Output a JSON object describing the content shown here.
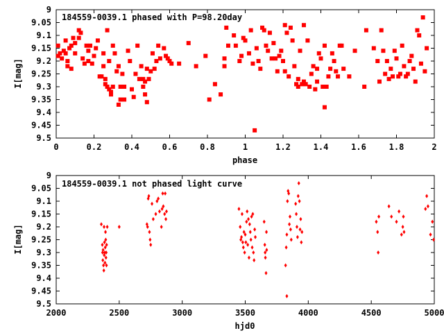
{
  "chart_data": [
    {
      "type": "scatter",
      "title": "184559-0039.1 phased with P=98.20day",
      "xlabel": "phase",
      "ylabel": "I[mag]",
      "xlim": [
        0,
        2
      ],
      "ylim": [
        9.5,
        9
      ],
      "y_inverted": true,
      "xticks": [
        0,
        0.2,
        0.4,
        0.6,
        0.8,
        1,
        1.2,
        1.4,
        1.6,
        1.8,
        2
      ],
      "xtick_labels": [
        "0",
        "0.2",
        "0.4",
        "0.6",
        "0.8",
        "1",
        "1.2",
        "1.4",
        "1.6",
        "1.8",
        "2"
      ],
      "yticks": [
        9,
        9.05,
        9.1,
        9.15,
        9.2,
        9.25,
        9.3,
        9.35,
        9.4,
        9.45,
        9.5
      ],
      "ytick_labels": [
        "9",
        "9.05",
        "9.1",
        "9.15",
        "9.2",
        "9.25",
        "9.3",
        "9.35",
        "9.4",
        "9.45",
        "9.5"
      ],
      "marker": "square",
      "color": "#ff0000",
      "points": [
        [
          0.01,
          9.14
        ],
        [
          0.01,
          9.18
        ],
        [
          0.02,
          9.17
        ],
        [
          0.03,
          9.19
        ],
        [
          0.04,
          9.16
        ],
        [
          0.05,
          9.12
        ],
        [
          0.05,
          9.17
        ],
        [
          0.06,
          9.2
        ],
        [
          0.06,
          9.22
        ],
        [
          0.07,
          9.15
        ],
        [
          0.08,
          9.23
        ],
        [
          0.08,
          9.14
        ],
        [
          0.09,
          9.11
        ],
        [
          0.1,
          9.13
        ],
        [
          0.1,
          9.17
        ],
        [
          0.12,
          9.08
        ],
        [
          0.12,
          9.11
        ],
        [
          0.13,
          9.09
        ],
        [
          0.14,
          9.19
        ],
        [
          0.15,
          9.21
        ],
        [
          0.16,
          9.14
        ],
        [
          0.17,
          9.16
        ],
        [
          0.17,
          9.2
        ],
        [
          0.18,
          9.14
        ],
        [
          0.19,
          9.21
        ],
        [
          0.2,
          9.18
        ],
        [
          0.21,
          9.15
        ],
        [
          0.22,
          9.12
        ],
        [
          0.23,
          9.26
        ],
        [
          0.24,
          9.26
        ],
        [
          0.25,
          9.17
        ],
        [
          0.25,
          9.22
        ],
        [
          0.26,
          9.27
        ],
        [
          0.26,
          9.29
        ],
        [
          0.27,
          9.08
        ],
        [
          0.27,
          9.3
        ],
        [
          0.28,
          9.31
        ],
        [
          0.28,
          9.2
        ],
        [
          0.29,
          9.32
        ],
        [
          0.29,
          9.33
        ],
        [
          0.3,
          9.3
        ],
        [
          0.3,
          9.14
        ],
        [
          0.31,
          9.17
        ],
        [
          0.32,
          9.24
        ],
        [
          0.33,
          9.22
        ],
        [
          0.33,
          9.37
        ],
        [
          0.34,
          9.35
        ],
        [
          0.34,
          9.3
        ],
        [
          0.35,
          9.25
        ],
        [
          0.35,
          9.3
        ],
        [
          0.36,
          9.35
        ],
        [
          0.36,
          9.3
        ],
        [
          0.38,
          9.16
        ],
        [
          0.39,
          9.2
        ],
        [
          0.4,
          9.31
        ],
        [
          0.41,
          9.34
        ],
        [
          0.42,
          9.25
        ],
        [
          0.43,
          9.14
        ],
        [
          0.44,
          9.27
        ],
        [
          0.45,
          9.22
        ],
        [
          0.46,
          9.27
        ],
        [
          0.46,
          9.3
        ],
        [
          0.47,
          9.28
        ],
        [
          0.47,
          9.33
        ],
        [
          0.48,
          9.36
        ],
        [
          0.48,
          9.23
        ],
        [
          0.49,
          9.27
        ],
        [
          0.5,
          9.24
        ],
        [
          0.51,
          9.17
        ],
        [
          0.52,
          9.23
        ],
        [
          0.53,
          9.2
        ],
        [
          0.54,
          9.14
        ],
        [
          0.55,
          9.19
        ],
        [
          0.57,
          9.15
        ],
        [
          0.58,
          9.18
        ],
        [
          0.59,
          9.19
        ],
        [
          0.6,
          9.2
        ],
        [
          0.61,
          9.21
        ],
        [
          0.65,
          9.21
        ],
        [
          0.7,
          9.13
        ],
        [
          0.74,
          9.22
        ],
        [
          0.79,
          9.18
        ],
        [
          0.81,
          9.35
        ],
        [
          0.84,
          9.29
        ],
        [
          0.87,
          9.33
        ],
        [
          0.89,
          9.19
        ],
        [
          0.89,
          9.22
        ],
        [
          0.9,
          9.07
        ],
        [
          0.91,
          9.14
        ],
        [
          0.94,
          9.1
        ],
        [
          0.95,
          9.14
        ],
        [
          0.97,
          9.2
        ],
        [
          0.98,
          9.18
        ],
        [
          0.99,
          9.11
        ],
        [
          1.0,
          9.12
        ],
        [
          1.02,
          9.17
        ],
        [
          1.03,
          9.08
        ],
        [
          1.04,
          9.21
        ],
        [
          1.05,
          9.47
        ],
        [
          1.06,
          9.15
        ],
        [
          1.07,
          9.2
        ],
        [
          1.08,
          9.23
        ],
        [
          1.09,
          9.07
        ],
        [
          1.1,
          9.08
        ],
        [
          1.11,
          9.14
        ],
        [
          1.12,
          9.16
        ],
        [
          1.13,
          9.09
        ],
        [
          1.14,
          9.19
        ],
        [
          1.15,
          9.13
        ],
        [
          1.16,
          9.19
        ],
        [
          1.17,
          9.24
        ],
        [
          1.18,
          9.18
        ],
        [
          1.19,
          9.16
        ],
        [
          1.2,
          9.2
        ],
        [
          1.21,
          9.24
        ],
        [
          1.21,
          9.06
        ],
        [
          1.22,
          9.09
        ],
        [
          1.23,
          9.26
        ],
        [
          1.24,
          9.07
        ],
        [
          1.25,
          9.12
        ],
        [
          1.26,
          9.22
        ],
        [
          1.27,
          9.29
        ],
        [
          1.28,
          9.3
        ],
        [
          1.28,
          9.27
        ],
        [
          1.29,
          9.16
        ],
        [
          1.3,
          9.29
        ],
        [
          1.31,
          9.06
        ],
        [
          1.31,
          9.28
        ],
        [
          1.32,
          9.29
        ],
        [
          1.33,
          9.12
        ],
        [
          1.34,
          9.3
        ],
        [
          1.35,
          9.25
        ],
        [
          1.36,
          9.22
        ],
        [
          1.37,
          9.31
        ],
        [
          1.38,
          9.23
        ],
        [
          1.38,
          9.28
        ],
        [
          1.39,
          9.17
        ],
        [
          1.4,
          9.19
        ],
        [
          1.41,
          9.3
        ],
        [
          1.42,
          9.14
        ],
        [
          1.42,
          9.38
        ],
        [
          1.43,
          9.3
        ],
        [
          1.44,
          9.26
        ],
        [
          1.45,
          9.23
        ],
        [
          1.46,
          9.17
        ],
        [
          1.47,
          9.2
        ],
        [
          1.48,
          9.24
        ],
        [
          1.49,
          9.26
        ],
        [
          1.5,
          9.14
        ],
        [
          1.51,
          9.14
        ],
        [
          1.52,
          9.23
        ],
        [
          1.55,
          9.26
        ],
        [
          1.58,
          9.16
        ],
        [
          1.63,
          9.3
        ],
        [
          1.64,
          9.08
        ],
        [
          1.68,
          9.15
        ],
        [
          1.7,
          9.2
        ],
        [
          1.71,
          9.28
        ],
        [
          1.72,
          9.08
        ],
        [
          1.73,
          9.16
        ],
        [
          1.74,
          9.25
        ],
        [
          1.75,
          9.2
        ],
        [
          1.76,
          9.27
        ],
        [
          1.77,
          9.23
        ],
        [
          1.78,
          9.26
        ],
        [
          1.79,
          9.16
        ],
        [
          1.8,
          9.19
        ],
        [
          1.81,
          9.26
        ],
        [
          1.82,
          9.25
        ],
        [
          1.83,
          9.14
        ],
        [
          1.84,
          9.22
        ],
        [
          1.85,
          9.26
        ],
        [
          1.86,
          9.25
        ],
        [
          1.87,
          9.2
        ],
        [
          1.88,
          9.18
        ],
        [
          1.89,
          9.23
        ],
        [
          1.9,
          9.28
        ],
        [
          1.91,
          9.08
        ],
        [
          1.92,
          9.1
        ],
        [
          1.93,
          9.21
        ],
        [
          1.94,
          9.03
        ],
        [
          1.95,
          9.24
        ],
        [
          1.96,
          9.15
        ]
      ]
    },
    {
      "type": "scatter",
      "title": "184559-0039.1 not phased light curve",
      "xlabel": "hjd0",
      "ylabel": "I[mag]",
      "xlim": [
        2000,
        5000
      ],
      "ylim": [
        9.5,
        9
      ],
      "y_inverted": true,
      "xticks": [
        2000,
        2500,
        3000,
        3500,
        4000,
        4500,
        5000
      ],
      "xtick_labels": [
        "2000",
        "2500",
        "3000",
        "3500",
        "4000",
        "4500",
        "5000"
      ],
      "yticks": [
        9,
        9.05,
        9.1,
        9.15,
        9.2,
        9.25,
        9.3,
        9.35,
        9.4,
        9.45,
        9.5
      ],
      "ytick_labels": [
        "9",
        "9.05",
        "9.1",
        "9.15",
        "9.2",
        "9.25",
        "9.3",
        "9.35",
        "9.4",
        "9.45",
        "9.5"
      ],
      "marker": "diamond",
      "color": "#ff0000",
      "points": [
        [
          2358,
          9.19
        ],
        [
          2366,
          9.27
        ],
        [
          2368,
          9.3
        ],
        [
          2370,
          9.33
        ],
        [
          2372,
          9.29
        ],
        [
          2375,
          9.35
        ],
        [
          2378,
          9.37
        ],
        [
          2380,
          9.2
        ],
        [
          2381,
          9.31
        ],
        [
          2383,
          9.26
        ],
        [
          2385,
          9.3
        ],
        [
          2387,
          9.34
        ],
        [
          2389,
          9.28
        ],
        [
          2391,
          9.22
        ],
        [
          2393,
          9.25
        ],
        [
          2395,
          9.32
        ],
        [
          2397,
          9.3
        ],
        [
          2399,
          9.35
        ],
        [
          2400,
          9.27
        ],
        [
          2405,
          9.2
        ],
        [
          2500,
          9.2
        ],
        [
          2720,
          9.19
        ],
        [
          2725,
          9.2
        ],
        [
          2730,
          9.09
        ],
        [
          2735,
          9.08
        ],
        [
          2740,
          9.22
        ],
        [
          2745,
          9.25
        ],
        [
          2750,
          9.27
        ],
        [
          2760,
          9.11
        ],
        [
          2770,
          9.17
        ],
        [
          2790,
          9.15
        ],
        [
          2800,
          9.1
        ],
        [
          2810,
          9.09
        ],
        [
          2820,
          9.14
        ],
        [
          2835,
          9.2
        ],
        [
          2840,
          9.13
        ],
        [
          2845,
          9.07
        ],
        [
          2850,
          9.12
        ],
        [
          2860,
          9.15
        ],
        [
          2865,
          9.07
        ],
        [
          2870,
          9.17
        ],
        [
          2875,
          9.14
        ],
        [
          3450,
          9.13
        ],
        [
          3460,
          9.2
        ],
        [
          3465,
          9.25
        ],
        [
          3470,
          9.24
        ],
        [
          3475,
          9.15
        ],
        [
          3480,
          9.26
        ],
        [
          3485,
          9.28
        ],
        [
          3490,
          9.22
        ],
        [
          3495,
          9.3
        ],
        [
          3500,
          9.23
        ],
        [
          3505,
          9.26
        ],
        [
          3510,
          9.18
        ],
        [
          3515,
          9.14
        ],
        [
          3520,
          9.27
        ],
        [
          3525,
          9.17
        ],
        [
          3530,
          9.32
        ],
        [
          3535,
          9.19
        ],
        [
          3540,
          9.22
        ],
        [
          3545,
          9.25
        ],
        [
          3550,
          9.16
        ],
        [
          3555,
          9.28
        ],
        [
          3560,
          9.15
        ],
        [
          3565,
          9.3
        ],
        [
          3570,
          9.33
        ],
        [
          3575,
          9.21
        ],
        [
          3580,
          9.24
        ],
        [
          3650,
          9.18
        ],
        [
          3655,
          9.27
        ],
        [
          3658,
          9.3
        ],
        [
          3660,
          9.32
        ],
        [
          3665,
          9.38
        ],
        [
          3668,
          9.22
        ],
        [
          3670,
          9.29
        ],
        [
          3820,
          9.35
        ],
        [
          3825,
          9.28
        ],
        [
          3830,
          9.23
        ],
        [
          3835,
          9.1
        ],
        [
          3840,
          9.06
        ],
        [
          3845,
          9.07
        ],
        [
          3850,
          9.19
        ],
        [
          3855,
          9.16
        ],
        [
          3860,
          9.21
        ],
        [
          3865,
          9.25
        ],
        [
          3830,
          9.47
        ],
        [
          3900,
          9.11
        ],
        [
          3905,
          9.15
        ],
        [
          3910,
          9.2
        ],
        [
          3915,
          9.24
        ],
        [
          3920,
          9.08
        ],
        [
          3925,
          9.03
        ],
        [
          3930,
          9.1
        ],
        [
          3935,
          9.21
        ],
        [
          3940,
          9.17
        ],
        [
          3945,
          9.26
        ],
        [
          3950,
          9.22
        ],
        [
          4540,
          9.18
        ],
        [
          4550,
          9.22
        ],
        [
          4555,
          9.3
        ],
        [
          4560,
          9.16
        ],
        [
          4640,
          9.12
        ],
        [
          4660,
          9.16
        ],
        [
          4700,
          9.18
        ],
        [
          4720,
          9.14
        ],
        [
          4740,
          9.23
        ],
        [
          4750,
          9.2
        ],
        [
          4755,
          9.16
        ],
        [
          4760,
          9.22
        ],
        [
          4930,
          9.13
        ],
        [
          4940,
          9.08
        ],
        [
          4950,
          9.12
        ],
        [
          4970,
          9.23
        ],
        [
          4985,
          9.18
        ],
        [
          4995,
          9.25
        ]
      ]
    }
  ]
}
